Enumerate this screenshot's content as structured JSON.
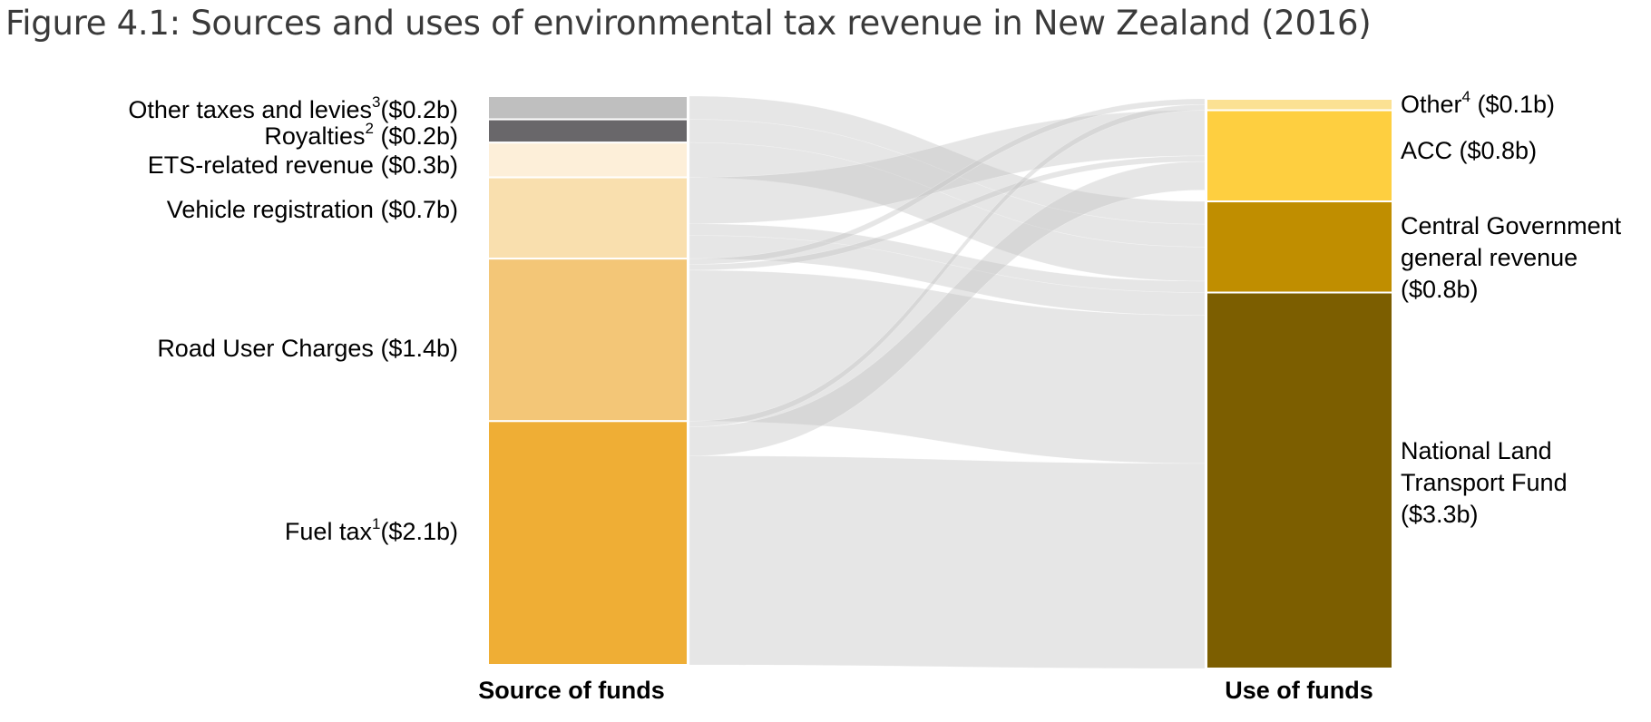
{
  "title": "Figure 4.1: Sources and uses of environmental tax revenue in New Zealand (2016)",
  "columns": {
    "source": "Source of funds",
    "use": "Use of funds"
  },
  "sources": [
    {
      "key": "other_taxes",
      "name": "Other taxes and levies",
      "note": "3",
      "amount": "($0.2b)",
      "value": 0.2,
      "color": "#bfbfbf"
    },
    {
      "key": "royalties",
      "name": "Royalties",
      "note": "2",
      "amount": "($0.2b)",
      "value": 0.2,
      "color": "#69676a"
    },
    {
      "key": "ets",
      "name": "ETS-related revenue",
      "note": "",
      "amount": "($0.3b)",
      "value": 0.3,
      "color": "#fdefd9"
    },
    {
      "key": "vehicle_reg",
      "name": "Vehicle registration",
      "note": "",
      "amount": "($0.7b)",
      "value": 0.7,
      "color": "#f9dfae"
    },
    {
      "key": "ruc",
      "name": "Road User Charges",
      "note": "",
      "amount": "($1.4b)",
      "value": 1.4,
      "color": "#f3c677"
    },
    {
      "key": "fuel",
      "name": "Fuel tax",
      "note": "1",
      "amount": "($2.1b)",
      "value": 2.1,
      "color": "#efae35"
    }
  ],
  "uses": [
    {
      "key": "other",
      "lines": [
        "Other"
      ],
      "note": "4",
      "amount": "($0.1b)",
      "value": 0.1,
      "color": "#fbe193"
    },
    {
      "key": "acc",
      "lines": [
        "ACC"
      ],
      "note": "",
      "amount": "($0.8b)",
      "value": 0.8,
      "color": "#fecf40"
    },
    {
      "key": "central",
      "lines": [
        "Central Government",
        "general revenue"
      ],
      "note": "",
      "amount": "($0.8b)",
      "value": 0.8,
      "color": "#c08e00"
    },
    {
      "key": "nltf",
      "lines": [
        "National Land",
        "Transport Fund"
      ],
      "note": "",
      "amount": "($3.3b)",
      "value": 3.3,
      "color": "#7c5e00"
    }
  ],
  "flows": [
    {
      "from": "other_taxes",
      "to": "central",
      "value": 0.2
    },
    {
      "from": "royalties",
      "to": "central",
      "value": 0.2
    },
    {
      "from": "ets",
      "to": "central",
      "value": 0.3
    },
    {
      "from": "vehicle_reg",
      "to": "acc",
      "value": 0.4
    },
    {
      "from": "vehicle_reg",
      "to": "central",
      "value": 0.1
    },
    {
      "from": "vehicle_reg",
      "to": "nltf",
      "value": 0.2
    },
    {
      "from": "ruc",
      "to": "other",
      "value": 0.05
    },
    {
      "from": "ruc",
      "to": "acc",
      "value": 0.05
    },
    {
      "from": "ruc",
      "to": "nltf",
      "value": 1.3
    },
    {
      "from": "fuel",
      "to": "other",
      "value": 0.05
    },
    {
      "from": "fuel",
      "to": "acc",
      "value": 0.25
    },
    {
      "from": "fuel",
      "to": "nltf",
      "value": 1.8
    }
  ],
  "colors": {
    "flow": "#c4c4c4",
    "title": "#3a3a3a",
    "text": "#000000"
  }
}
